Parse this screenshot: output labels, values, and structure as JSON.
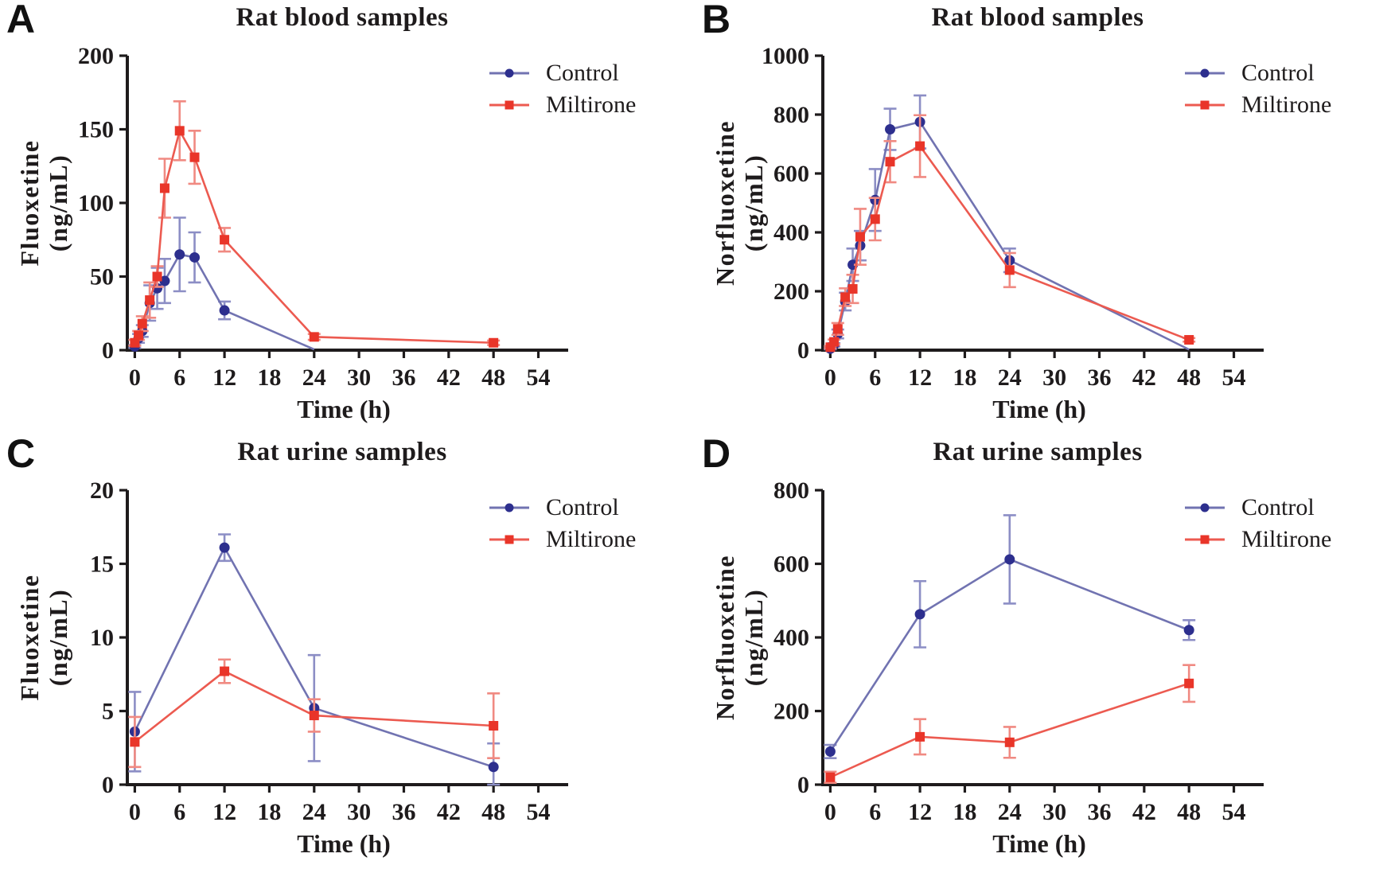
{
  "figure": {
    "background": "#ffffff",
    "ink": "#1e1b1c"
  },
  "chart_data": [
    {
      "panel_label": "A",
      "type": "line",
      "title": "Rat blood samples",
      "xlabel": "Time (h)",
      "ylabel_lines": [
        "Fluoxetine",
        "(ng/mL)"
      ],
      "xlim": [
        -1,
        56.5
      ],
      "ylim": [
        0,
        200
      ],
      "xticks": [
        0,
        6,
        12,
        18,
        24,
        30,
        36,
        42,
        48,
        54
      ],
      "yticks": [
        0,
        50,
        100,
        150,
        200
      ],
      "legend_position": "top-right",
      "grid": false,
      "series": [
        {
          "name": "Control",
          "marker": "circle",
          "marker_color": "#2d2f8e",
          "line_color": "#7173b1",
          "err_color": "#8c8ec5",
          "x": [
            0,
            0.5,
            1,
            2,
            3,
            4,
            6,
            8,
            12,
            24
          ],
          "y": [
            2.5,
            8,
            13,
            32,
            42,
            47,
            65,
            63,
            27,
            0.5
          ],
          "err": [
            1,
            3,
            4,
            12,
            14,
            15,
            25,
            17,
            6,
            0
          ],
          "hide_marker_at": [
            9
          ]
        },
        {
          "name": "Miltirone",
          "marker": "square",
          "marker_color": "#e93529",
          "line_color": "#ec5a50",
          "err_color": "#f08a82",
          "x": [
            0,
            0.5,
            1,
            2,
            3,
            4,
            6,
            8,
            12,
            24,
            48
          ],
          "y": [
            5,
            10,
            18,
            34,
            50,
            110,
            149,
            131,
            75,
            9,
            5
          ],
          "err": [
            2,
            3,
            5,
            12,
            7,
            20,
            20,
            18,
            8,
            2,
            1.5
          ],
          "hide_marker_at": []
        }
      ]
    },
    {
      "panel_label": "B",
      "type": "line",
      "title": "Rat blood samples",
      "xlabel": "Time (h)",
      "ylabel_lines": [
        "Norfluoxetine",
        "(ng/mL)"
      ],
      "xlim": [
        -1,
        56.5
      ],
      "ylim": [
        0,
        1000
      ],
      "xticks": [
        0,
        6,
        12,
        18,
        24,
        30,
        36,
        42,
        48,
        54
      ],
      "yticks": [
        0,
        200,
        400,
        600,
        800,
        1000
      ],
      "legend_position": "top-right",
      "grid": false,
      "series": [
        {
          "name": "Control",
          "marker": "circle",
          "marker_color": "#2d2f8e",
          "line_color": "#7173b1",
          "err_color": "#8c8ec5",
          "x": [
            0,
            0.5,
            1,
            2,
            3,
            4,
            6,
            8,
            12,
            24,
            48
          ],
          "y": [
            5,
            18,
            55,
            165,
            290,
            355,
            510,
            750,
            775,
            305,
            2
          ],
          "err": [
            2,
            6,
            15,
            30,
            55,
            50,
            105,
            70,
            90,
            40,
            0
          ],
          "hide_marker_at": [
            10
          ]
        },
        {
          "name": "Miltirone",
          "marker": "square",
          "marker_color": "#e93529",
          "line_color": "#ec5a50",
          "err_color": "#f08a82",
          "x": [
            0,
            0.5,
            1,
            2,
            3,
            4,
            6,
            8,
            12,
            24,
            48
          ],
          "y": [
            10,
            28,
            72,
            180,
            208,
            385,
            445,
            640,
            693,
            272,
            35
          ],
          "err": [
            4,
            8,
            20,
            30,
            48,
            95,
            72,
            70,
            105,
            58,
            6
          ],
          "hide_marker_at": []
        }
      ]
    },
    {
      "panel_label": "C",
      "type": "line",
      "title": "Rat urine samples",
      "xlabel": "Time (h)",
      "ylabel_lines": [
        "Fluoxetine",
        "(ng/mL)"
      ],
      "xlim": [
        -1,
        56.5
      ],
      "ylim": [
        0,
        20
      ],
      "xticks": [
        0,
        6,
        12,
        18,
        24,
        30,
        36,
        42,
        48,
        54
      ],
      "yticks": [
        0,
        5,
        10,
        15,
        20
      ],
      "legend_position": "top-right",
      "grid": false,
      "series": [
        {
          "name": "Control",
          "marker": "circle",
          "marker_color": "#2d2f8e",
          "line_color": "#7173b1",
          "err_color": "#8c8ec5",
          "x": [
            0,
            12,
            24,
            48
          ],
          "y": [
            3.6,
            16.1,
            5.2,
            1.2
          ],
          "err": [
            2.7,
            0.9,
            3.6,
            1.6
          ],
          "hide_marker_at": []
        },
        {
          "name": "Miltirone",
          "marker": "square",
          "marker_color": "#e93529",
          "line_color": "#ec5a50",
          "err_color": "#f08a82",
          "x": [
            0,
            12,
            24,
            48
          ],
          "y": [
            2.9,
            7.7,
            4.7,
            4.0
          ],
          "err": [
            1.7,
            0.8,
            1.1,
            2.2
          ],
          "hide_marker_at": []
        }
      ]
    },
    {
      "panel_label": "D",
      "type": "line",
      "title": "Rat urine samples",
      "xlabel": "Time (h)",
      "ylabel_lines": [
        "Norfluoxetine",
        "(ng/mL)"
      ],
      "xlim": [
        -1,
        56.5
      ],
      "ylim": [
        0,
        800
      ],
      "xticks": [
        0,
        6,
        12,
        18,
        24,
        30,
        36,
        42,
        48,
        54
      ],
      "yticks": [
        0,
        200,
        400,
        600,
        800
      ],
      "legend_position": "top-right",
      "grid": false,
      "series": [
        {
          "name": "Control",
          "marker": "circle",
          "marker_color": "#2d2f8e",
          "line_color": "#7173b1",
          "err_color": "#8c8ec5",
          "x": [
            0,
            12,
            24,
            48
          ],
          "y": [
            90,
            463,
            612,
            420
          ],
          "err": [
            18,
            90,
            120,
            27
          ],
          "hide_marker_at": []
        },
        {
          "name": "Miltirone",
          "marker": "square",
          "marker_color": "#e93529",
          "line_color": "#ec5a50",
          "err_color": "#f08a82",
          "x": [
            0,
            12,
            24,
            48
          ],
          "y": [
            20,
            130,
            115,
            275
          ],
          "err": [
            15,
            48,
            42,
            50
          ],
          "hide_marker_at": []
        }
      ]
    }
  ]
}
